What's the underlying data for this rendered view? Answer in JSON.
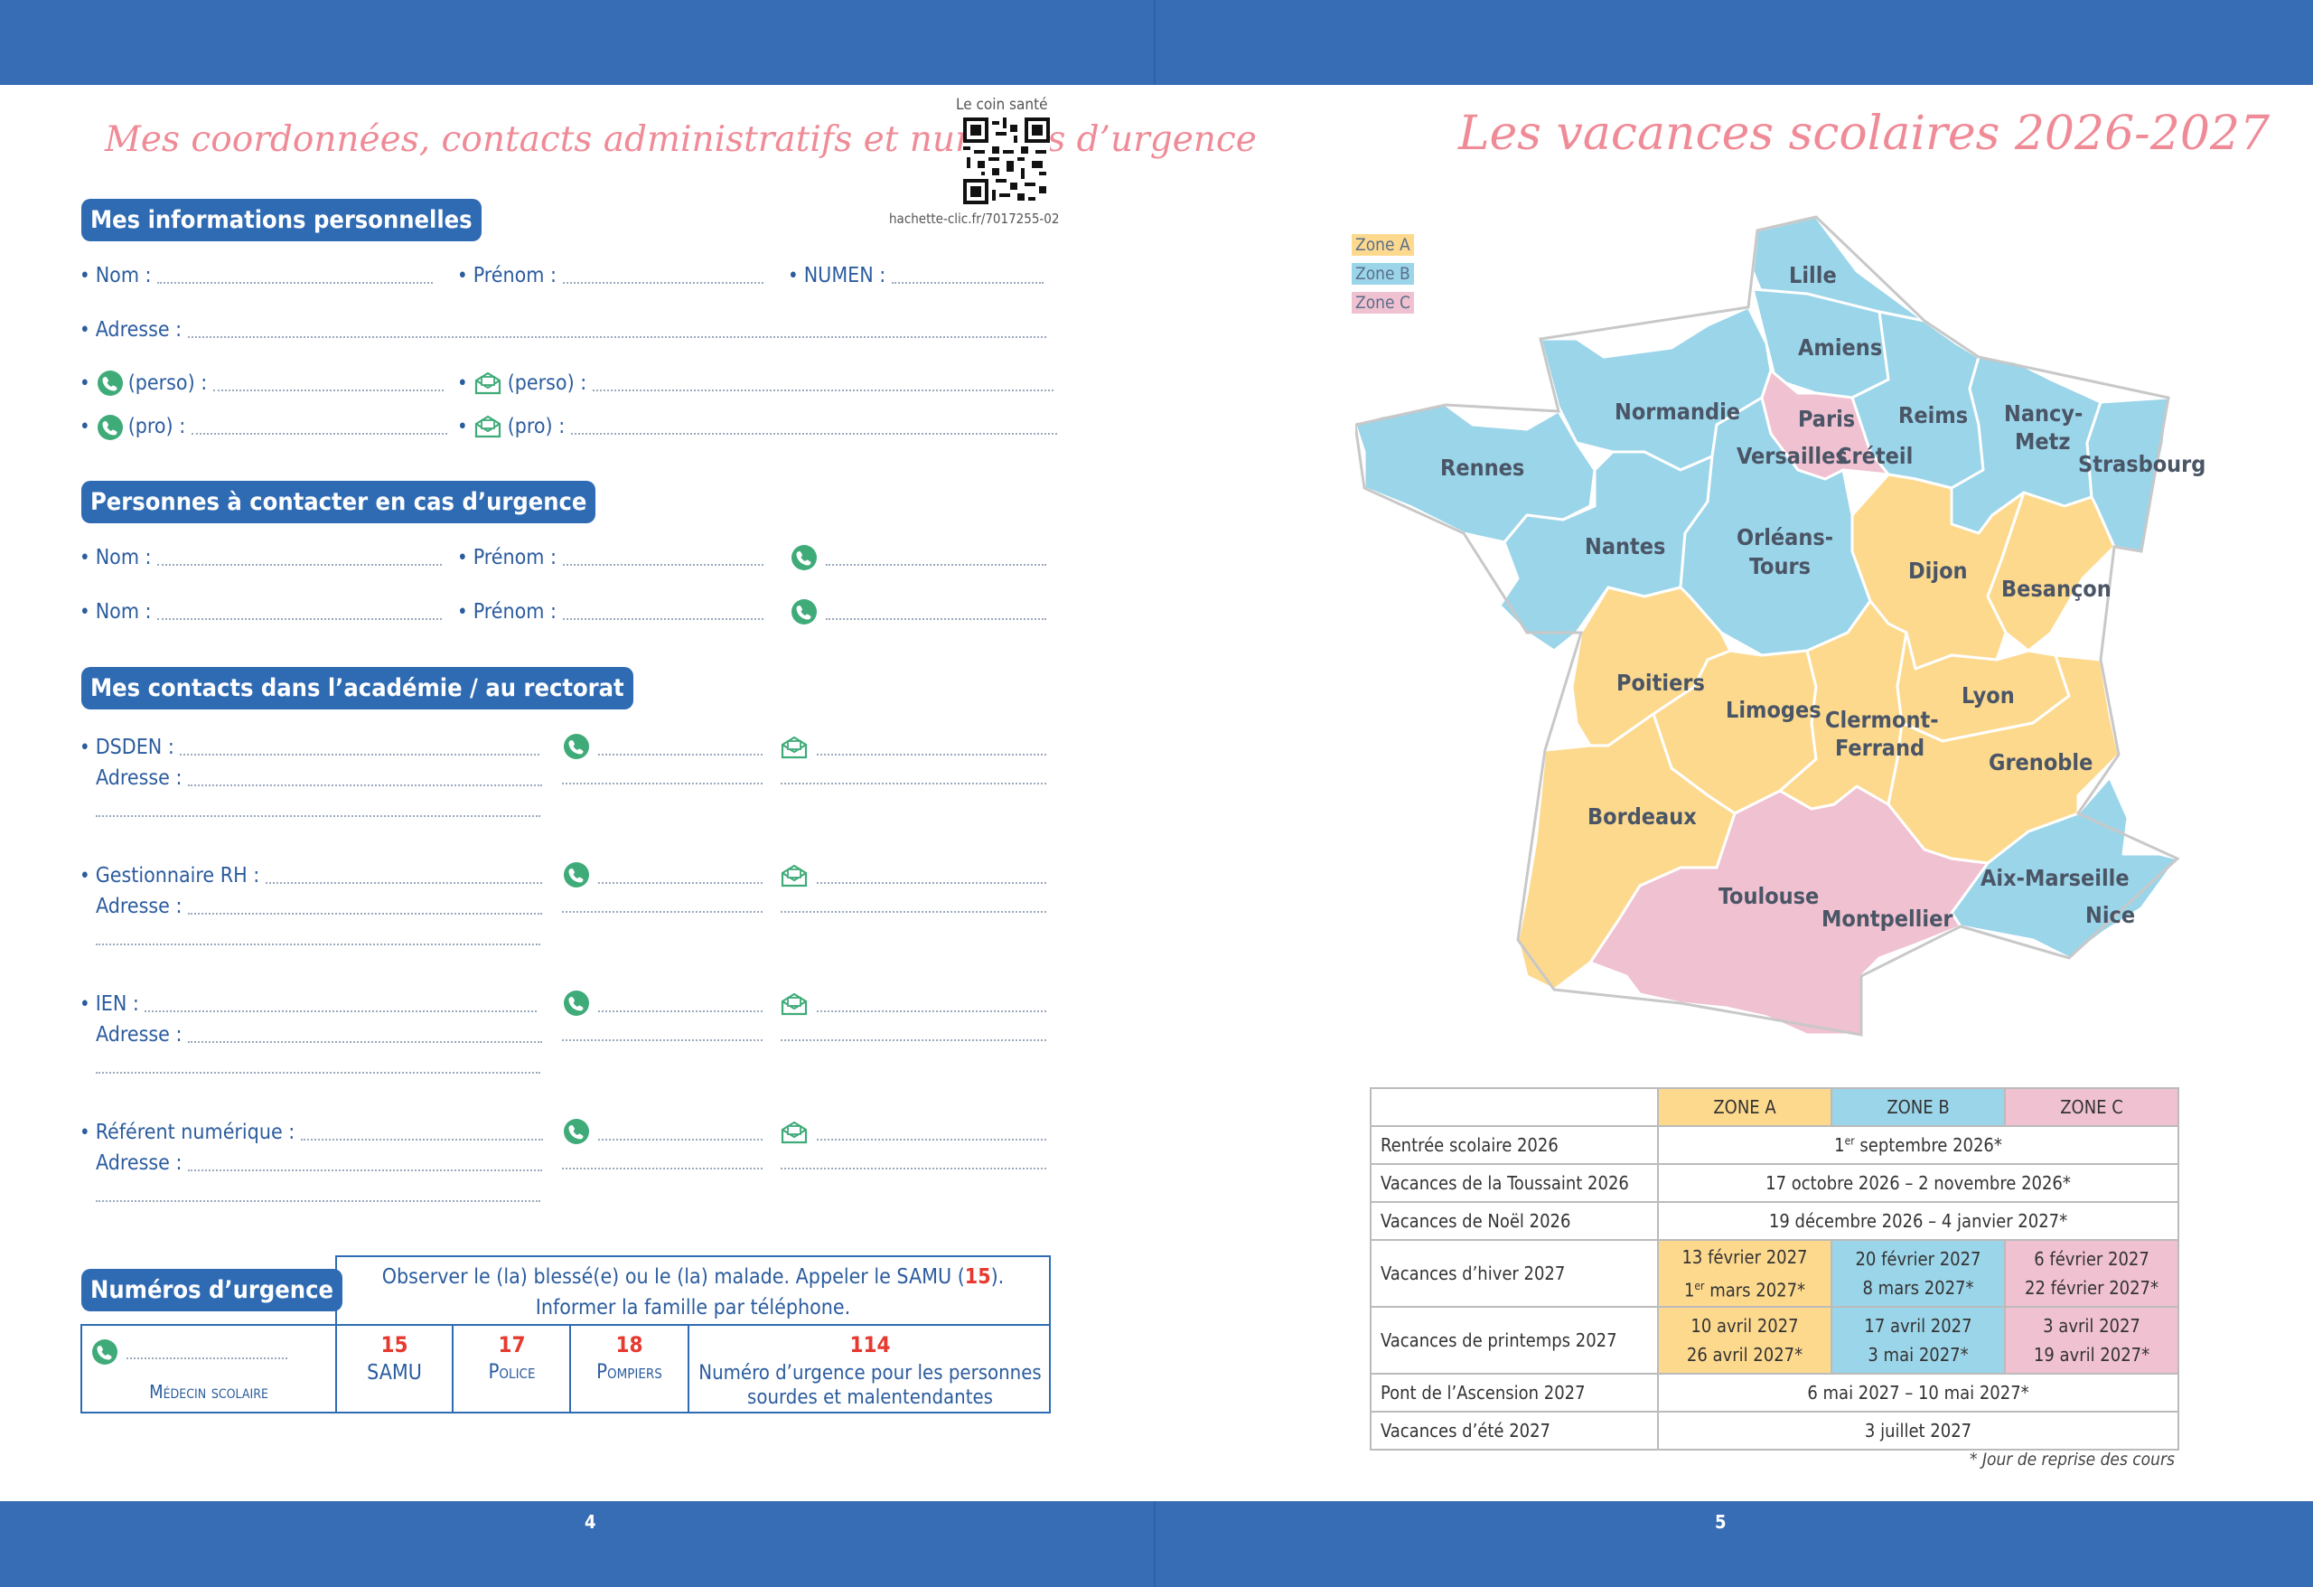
{
  "left_page": {
    "title": "Mes coordonnées, contacts administratifs et numéros d’urgence",
    "qr": {
      "caption_top": "Le coin santé",
      "caption_bottom": "hachette-clic.fr/7017255-02"
    },
    "section_personal": "Mes informations personnelles",
    "personal": {
      "nom": "Nom :",
      "prenom": "Prénom :",
      "numen": "NUMEN :",
      "adresse": "Adresse :",
      "tel_perso": "(perso) :",
      "mail_perso": "(perso) :",
      "tel_pro": "(pro) :",
      "mail_pro": "(pro) :"
    },
    "section_emergency_contacts": "Personnes à contacter en cas d’urgence",
    "emergency_contacts": {
      "nom": "Nom :",
      "prenom": "Prénom :"
    },
    "section_academy": "Mes contacts dans l’académie / au rectorat",
    "academy": {
      "address_label": "Adresse :",
      "items": [
        "DSDEN :",
        "Gestionnaire RH :",
        "IEN :",
        "Référent numérique :"
      ]
    },
    "section_numbers": "Numéros d’urgence",
    "numbers": {
      "instruction_1": "Observer le (la) blessé(e) ou le (la) malade. Appeler le SAMU (",
      "instruction_num": "15",
      "instruction_2": ").",
      "instruction_3": "Informer la famille par téléphone.",
      "medecin": "Médecin scolaire",
      "cells": [
        {
          "num": "15",
          "label": "SAMU"
        },
        {
          "num": "17",
          "label": "Police"
        },
        {
          "num": "18",
          "label": "Pompiers"
        },
        {
          "num": "114",
          "label": "Numéro d’urgence pour les personnes sourdes et malentendantes"
        }
      ]
    },
    "page_number": "4"
  },
  "right_page": {
    "title": "Les vacances scolaires 2026-2027",
    "legend": [
      {
        "label": "Zone A",
        "color": "#fdd98e"
      },
      {
        "label": "Zone B",
        "color": "#9bd5e9"
      },
      {
        "label": "Zone C",
        "color": "#f0c1d0"
      }
    ],
    "map_cities": {
      "lille": "Lille",
      "amiens": "Amiens",
      "normandie": "Normandie",
      "paris": "Paris",
      "reims": "Reims",
      "nancy1": "Nancy-",
      "nancy2": "Metz",
      "strasbourg": "Strasbourg",
      "rennes": "Rennes",
      "versailles": "Versailles",
      "creteil": "Créteil",
      "nantes": "Nantes",
      "orleans1": "Orléans-",
      "orleans2": "Tours",
      "dijon": "Dijon",
      "besancon": "Besançon",
      "poitiers": "Poitiers",
      "limoges": "Limoges",
      "clermont1": "Clermont-",
      "clermont2": "Ferrand",
      "lyon": "Lyon",
      "grenoble": "Grenoble",
      "bordeaux": "Bordeaux",
      "toulouse": "Toulouse",
      "montpellier": "Montpellier",
      "aix": "Aix-Marseille",
      "nice": "Nice"
    },
    "table": {
      "headers": [
        "ZONE A",
        "ZONE B",
        "ZONE C"
      ],
      "rows": {
        "rentree": {
          "label": "Rentrée scolaire 2026",
          "all_pre": "1",
          "all_sup": "er",
          "all_post": " septembre 2026*"
        },
        "toussaint": {
          "label": "Vacances de la Toussaint 2026",
          "all": "17 octobre 2026 – 2 novembre 2026*"
        },
        "noel": {
          "label": "Vacances de Noël 2026",
          "all": "19 décembre 2026 – 4 janvier 2027*"
        },
        "hiver": {
          "label": "Vacances d’hiver 2027",
          "a1": "13 février 2027",
          "a2_pre": "1",
          "a2_sup": "er",
          "a2_post": " mars 2027*",
          "b1": "20 février 2027",
          "b2": "8 mars 2027*",
          "c1": "6 février 2027",
          "c2": "22 février 2027*"
        },
        "printemps": {
          "label": "Vacances de printemps 2027",
          "a1": "10 avril 2027",
          "a2": "26 avril 2027*",
          "b1": "17 avril 2027",
          "b2": "3 mai 2027*",
          "c1": "3 avril 2027",
          "c2": "19 avril 2027*"
        },
        "ascension": {
          "label": "Pont de l’Ascension 2027",
          "all": "6 mai 2027 – 10 mai 2027*"
        },
        "ete": {
          "label": "Vacances d’été 2027",
          "all": "3 juillet 2027"
        }
      },
      "footnote": "* Jour de reprise des cours"
    },
    "page_number": "5"
  }
}
